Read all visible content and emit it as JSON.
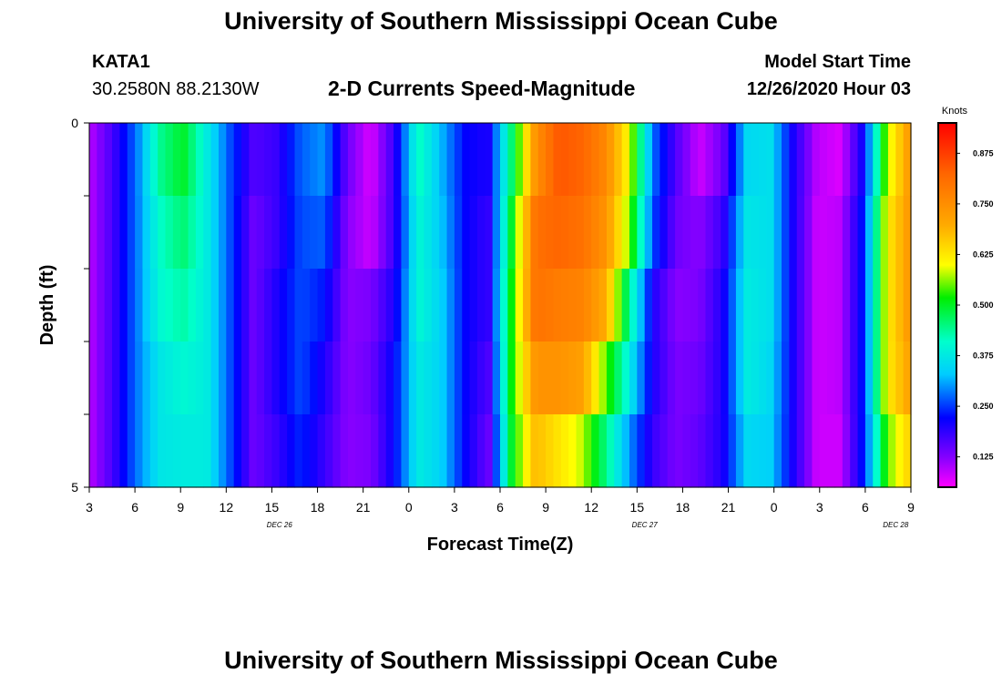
{
  "page": {
    "title_top": "University of Southern Mississippi Ocean Cube",
    "title_bottom": "University of Southern Mississippi Ocean Cube",
    "station_id": "KATA1",
    "station_coords": "30.2580N 88.2130W",
    "subtitle": "2-D Currents Speed-Magnitude",
    "model_start_label": "Model Start Time",
    "model_start_value": "12/26/2020 Hour 03"
  },
  "chart_data": {
    "type": "heatmap",
    "title": "2-D Currents Speed-Magnitude",
    "xlabel": "Forecast Time(Z)",
    "ylabel": "Depth (ft)",
    "x_tick_labels": [
      "3",
      "6",
      "9",
      "12",
      "15",
      "18",
      "21",
      "0",
      "3",
      "6",
      "9",
      "12",
      "15",
      "18",
      "21",
      "0",
      "3",
      "6",
      "9"
    ],
    "date_labels": [
      {
        "label": "DEC 26",
        "at_hour": 12.5
      },
      {
        "label": "DEC 27",
        "at_hour": 36.5
      },
      {
        "label": "DEC 28",
        "at_hour": 53
      }
    ],
    "xlim_hours_from_start": [
      0,
      54
    ],
    "y_tick_labels": [
      {
        "value": 0,
        "label": "0"
      },
      {
        "value": 5,
        "label": "5"
      }
    ],
    "ylim": [
      0,
      5
    ],
    "depth_layers": 5,
    "colorbar": {
      "unit_label": "Knots",
      "range": [
        0.05,
        0.95
      ],
      "ticks": [
        "0.125",
        "0.250",
        "0.375",
        "0.500",
        "0.625",
        "0.750",
        "0.875"
      ],
      "tick_values": [
        0.125,
        0.25,
        0.375,
        0.5,
        0.625,
        0.75,
        0.875
      ]
    },
    "time_step_hours": 0.5,
    "speed_by_layer_knots": [
      [
        0.09,
        0.17,
        0.28,
        0.44,
        0.5,
        0.38,
        0.26,
        0.16,
        0.18,
        0.27,
        0.3,
        0.14,
        0.07,
        0.18,
        0.42,
        0.32,
        0.22,
        0.2,
        0.46,
        0.74,
        0.84,
        0.82,
        0.76,
        0.6,
        0.28,
        0.16,
        0.08,
        0.14,
        0.35,
        0.36,
        0.2,
        0.09,
        0.07,
        0.22,
        0.58,
        0.74
      ],
      [
        0.09,
        0.17,
        0.28,
        0.41,
        0.46,
        0.38,
        0.26,
        0.14,
        0.18,
        0.26,
        0.27,
        0.12,
        0.08,
        0.18,
        0.4,
        0.33,
        0.22,
        0.18,
        0.5,
        0.8,
        0.82,
        0.8,
        0.74,
        0.56,
        0.26,
        0.14,
        0.12,
        0.18,
        0.37,
        0.36,
        0.2,
        0.08,
        0.09,
        0.24,
        0.62,
        0.74
      ],
      [
        0.09,
        0.17,
        0.28,
        0.4,
        0.43,
        0.38,
        0.26,
        0.14,
        0.2,
        0.26,
        0.23,
        0.12,
        0.13,
        0.2,
        0.4,
        0.34,
        0.22,
        0.18,
        0.52,
        0.8,
        0.78,
        0.77,
        0.7,
        0.44,
        0.2,
        0.12,
        0.13,
        0.2,
        0.38,
        0.36,
        0.2,
        0.08,
        0.09,
        0.24,
        0.62,
        0.74
      ],
      [
        0.09,
        0.17,
        0.28,
        0.37,
        0.4,
        0.38,
        0.26,
        0.14,
        0.2,
        0.26,
        0.2,
        0.12,
        0.14,
        0.22,
        0.38,
        0.34,
        0.22,
        0.16,
        0.52,
        0.74,
        0.74,
        0.72,
        0.55,
        0.38,
        0.2,
        0.13,
        0.14,
        0.2,
        0.38,
        0.35,
        0.2,
        0.08,
        0.09,
        0.24,
        0.62,
        0.72
      ],
      [
        0.09,
        0.17,
        0.28,
        0.37,
        0.38,
        0.38,
        0.26,
        0.14,
        0.18,
        0.24,
        0.18,
        0.12,
        0.13,
        0.22,
        0.38,
        0.34,
        0.22,
        0.14,
        0.5,
        0.68,
        0.63,
        0.58,
        0.45,
        0.3,
        0.18,
        0.13,
        0.15,
        0.2,
        0.35,
        0.34,
        0.2,
        0.08,
        0.08,
        0.24,
        0.55,
        0.66
      ]
    ]
  }
}
